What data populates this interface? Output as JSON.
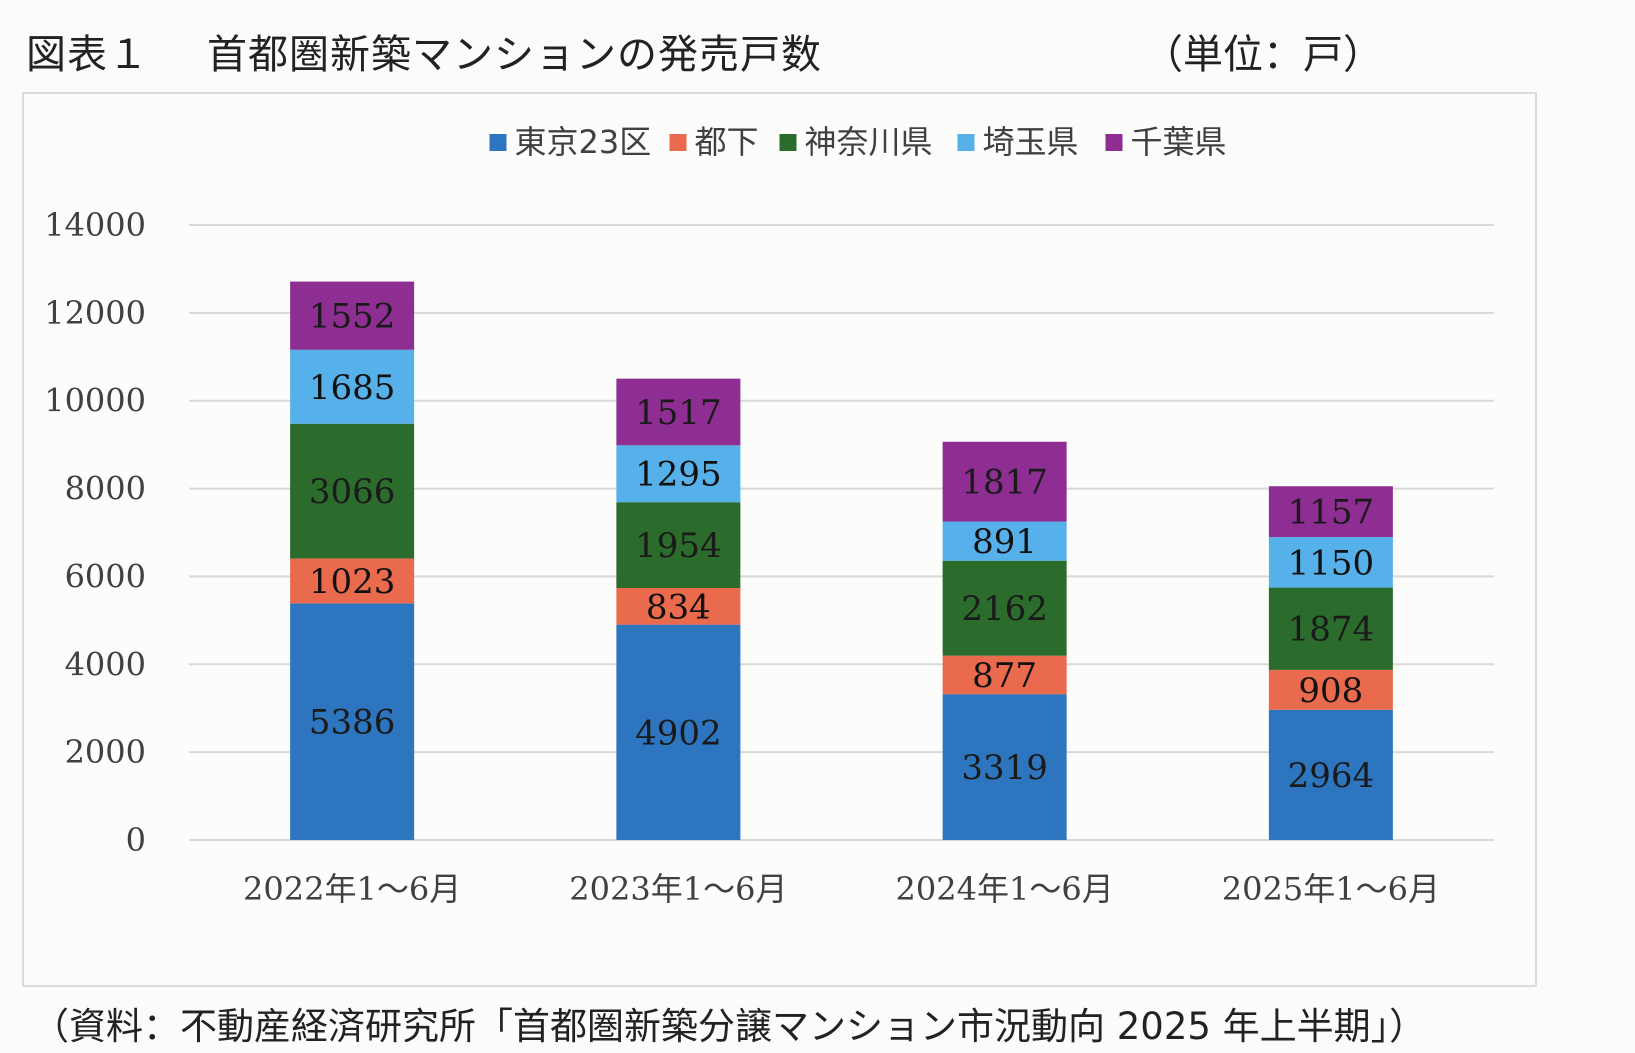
{
  "figure": {
    "label": "図表１",
    "title": "首都圏新築マンションの発売戸数",
    "unit": "（単位：戸）",
    "source": "（資料：不動産経済研究所「首都圏新築分譲マンション市況動向 2025 年上半期」）"
  },
  "chart_data": {
    "type": "bar",
    "stacked": true,
    "categories": [
      "2022年1～6月",
      "2023年1～6月",
      "2024年1～6月",
      "2025年1～6月"
    ],
    "series": [
      {
        "name": "東京23区",
        "color": "#2e75bf",
        "values": [
          5386,
          4902,
          3319,
          2964
        ]
      },
      {
        "name": "都下",
        "color": "#ea6a4d",
        "values": [
          1023,
          834,
          877,
          908
        ]
      },
      {
        "name": "神奈川県",
        "color": "#2b6b2c",
        "values": [
          3066,
          1954,
          2162,
          1874
        ]
      },
      {
        "name": "埼玉県",
        "color": "#56b0ea",
        "values": [
          1685,
          1295,
          891,
          1150
        ]
      },
      {
        "name": "千葉県",
        "color": "#8e2e93",
        "values": [
          1552,
          1517,
          1817,
          1157
        ]
      }
    ],
    "ylim": [
      0,
      14000
    ],
    "yticks": [
      "0",
      "2000",
      "4000",
      "6000",
      "8000",
      "10000",
      "12000",
      "14000"
    ],
    "grid": true,
    "legend_position": "top",
    "data_labels": true
  }
}
